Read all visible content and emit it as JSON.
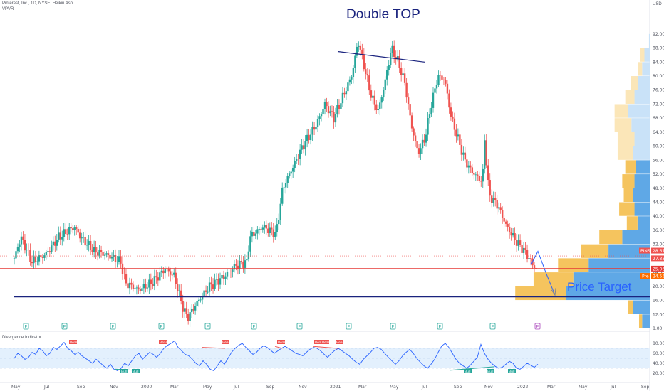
{
  "header": {
    "symbol_line": "Pinterest, Inc., 1D, NYSE, Heikin Ashi",
    "indicator": "VPVR",
    "currency": "USD"
  },
  "annotations": {
    "double_top": "Double TOP",
    "price_target": "Price Target"
  },
  "oscillator": {
    "title": "Divergence Indicator",
    "ticks": [
      "80.00",
      "60.00",
      "40.00",
      "20.00"
    ],
    "bear_label": "Bear",
    "bull_label": "Bull"
  },
  "price_labels": {
    "pins": "PINS",
    "last": "28.67",
    "last2": "27.33",
    "red_line": "25.06",
    "blue": "24.55",
    "pre": "Pre"
  },
  "earnings_marker": "E",
  "colors": {
    "up": "#26a69a",
    "down": "#ef5350",
    "vp_up": "#5fa8e6",
    "vp_down": "#f5c45e",
    "vp_up_light": "#c9e2f8",
    "vp_down_light": "#fbe6b8",
    "resistance": "#e53935",
    "support": "#1a237e",
    "osc": "#2962ff"
  },
  "chart_data": {
    "type": "candlestick",
    "title": "Pinterest, Inc., 1D, NYSE, Heikin Ashi",
    "ylabel": "USD",
    "ylim": [
      8,
      94
    ],
    "y_ticks": [
      "92.00",
      "88.00",
      "84.00",
      "80.00",
      "76.00",
      "72.00",
      "68.00",
      "64.00",
      "60.00",
      "56.00",
      "52.00",
      "48.00",
      "44.00",
      "40.00",
      "36.00",
      "32.00",
      "28.00",
      "24.00",
      "20.00",
      "16.00",
      "12.00",
      "8.00"
    ],
    "x_ticks": [
      "May",
      "Jul",
      "Sep",
      "Nov",
      "2020",
      "Mar",
      "May",
      "Jul",
      "Sep",
      "Nov",
      "2021",
      "Mar",
      "May",
      "Jul",
      "Sep",
      "Nov",
      "2022",
      "Mar",
      "May",
      "Jul",
      "Sep"
    ],
    "series_path": [
      [
        0,
        28
      ],
      [
        3,
        34
      ],
      [
        8,
        27
      ],
      [
        14,
        29
      ],
      [
        20,
        34
      ],
      [
        27,
        37
      ],
      [
        30,
        34
      ],
      [
        36,
        30
      ],
      [
        42,
        29
      ],
      [
        48,
        27
      ],
      [
        50,
        21
      ],
      [
        56,
        19
      ],
      [
        62,
        21
      ],
      [
        68,
        25
      ],
      [
        72,
        23
      ],
      [
        76,
        14
      ],
      [
        78,
        11
      ],
      [
        82,
        15
      ],
      [
        88,
        20
      ],
      [
        95,
        23
      ],
      [
        100,
        26
      ],
      [
        105,
        27
      ],
      [
        106,
        34
      ],
      [
        112,
        37
      ],
      [
        118,
        35
      ],
      [
        121,
        48
      ],
      [
        124,
        52
      ],
      [
        130,
        60
      ],
      [
        136,
        66
      ],
      [
        140,
        72
      ],
      [
        144,
        68
      ],
      [
        148,
        74
      ],
      [
        152,
        80
      ],
      [
        155,
        90
      ],
      [
        158,
        82
      ],
      [
        161,
        74
      ],
      [
        164,
        70
      ],
      [
        167,
        78
      ],
      [
        170,
        88
      ],
      [
        173,
        84
      ],
      [
        176,
        78
      ],
      [
        179,
        66
      ],
      [
        182,
        58
      ],
      [
        185,
        62
      ],
      [
        188,
        72
      ],
      [
        191,
        80
      ],
      [
        194,
        79
      ],
      [
        197,
        68
      ],
      [
        200,
        62
      ],
      [
        203,
        56
      ],
      [
        206,
        53
      ],
      [
        209,
        51
      ],
      [
        211,
        50
      ],
      [
        212,
        62
      ],
      [
        214,
        46
      ],
      [
        218,
        43
      ],
      [
        222,
        37
      ],
      [
        226,
        33
      ],
      [
        230,
        30
      ],
      [
        233,
        27
      ],
      [
        236,
        24
      ]
    ],
    "price_levels": {
      "resistance": 25.06,
      "support": 17.0,
      "last": 28.67
    },
    "double_top": {
      "from": 87.0,
      "to": 84.0
    },
    "price_target": {
      "from": 26.0,
      "to": 17.5
    },
    "volume_profile": [
      {
        "price": 90,
        "up": 1,
        "down": 0
      },
      {
        "price": 86,
        "up": 7,
        "down": 6
      },
      {
        "price": 82,
        "up": 10,
        "down": 5
      },
      {
        "price": 78,
        "up": 15,
        "down": 10
      },
      {
        "price": 74,
        "up": 20,
        "down": 12
      },
      {
        "price": 70,
        "up": 28,
        "down": 18
      },
      {
        "price": 66,
        "up": 24,
        "down": 22
      },
      {
        "price": 62,
        "up": 20,
        "down": 22
      },
      {
        "price": 58,
        "up": 22,
        "down": 20
      },
      {
        "price": 54,
        "up": 18,
        "down": 14
      },
      {
        "price": 50,
        "up": 20,
        "down": 16
      },
      {
        "price": 46,
        "up": 22,
        "down": 12
      },
      {
        "price": 42,
        "up": 20,
        "down": 20
      },
      {
        "price": 38,
        "up": 16,
        "down": 14
      },
      {
        "price": 34,
        "up": 36,
        "down": 30
      },
      {
        "price": 30,
        "up": 54,
        "down": 36
      },
      {
        "price": 26,
        "up": 80,
        "down": 40
      },
      {
        "price": 22,
        "up": 100,
        "down": 52
      },
      {
        "price": 18,
        "up": 110,
        "down": 66
      },
      {
        "price": 14,
        "up": 22,
        "down": 6
      },
      {
        "price": 10,
        "up": 10,
        "down": 4
      }
    ],
    "oscillator_ylim": [
      10,
      90
    ],
    "oscillator_series": [
      50,
      60,
      55,
      48,
      52,
      62,
      58,
      70,
      65,
      55,
      60,
      72,
      68,
      75,
      82,
      70,
      65,
      58,
      62,
      55,
      50,
      45,
      40,
      48,
      42,
      35,
      30,
      38,
      28,
      25,
      30,
      40,
      35,
      45,
      55,
      60,
      48,
      55,
      62,
      58,
      52,
      60,
      70,
      76,
      80,
      85,
      72,
      65,
      58,
      55,
      48,
      40,
      35,
      45,
      38,
      28,
      25,
      35,
      45,
      38,
      50,
      62,
      70,
      76,
      80,
      72,
      65,
      58,
      62,
      70,
      75,
      72,
      66,
      60,
      65,
      70,
      74,
      70,
      65,
      60,
      58,
      55,
      62,
      68,
      72,
      70,
      65,
      58,
      52,
      60,
      66,
      70,
      65,
      60,
      55,
      48,
      42,
      38,
      48,
      55,
      62,
      70,
      72,
      68,
      60,
      52,
      45,
      38,
      45,
      55,
      62,
      68,
      60,
      50,
      42,
      35,
      30,
      38,
      48,
      62,
      75,
      80,
      72,
      60,
      48,
      40,
      35,
      30,
      36,
      44,
      52,
      78,
      60,
      48,
      40,
      34,
      30,
      32,
      38,
      44,
      40,
      30,
      28,
      34,
      40,
      36,
      32,
      38
    ]
  }
}
